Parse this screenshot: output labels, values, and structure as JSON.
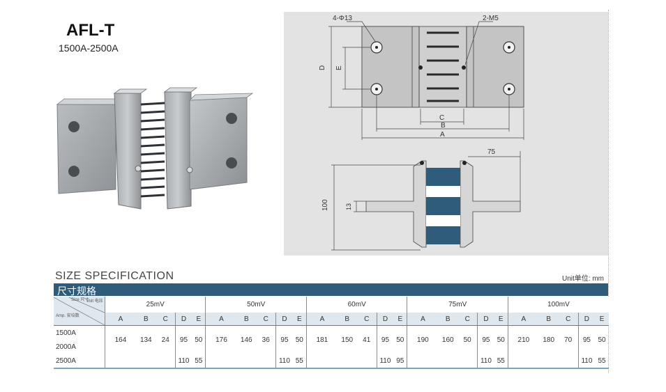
{
  "product": {
    "title": "AFL-T",
    "subtitle": "1500A-2500A"
  },
  "drawing": {
    "labels": {
      "holes": "4-Φ13",
      "screws": "2-M5",
      "d": "D",
      "e": "E",
      "c": "C",
      "b": "B",
      "a": "A",
      "dim_75": "75",
      "dim_100": "100",
      "dim_13": "13"
    }
  },
  "spec": {
    "heading": "SIZE SPECIFICATION",
    "heading_cn": "尺寸规格",
    "unit": "Unit单位: mm",
    "corner": {
      "size": "Size 尺寸",
      "volt": "Volt 电压",
      "amp": "Amp. 安培数"
    },
    "volt_groups": [
      "25mV",
      "50mV",
      "60mV",
      "75mV",
      "100mV"
    ],
    "columns": [
      "A",
      "B",
      "C",
      "D",
      "E"
    ],
    "amps": [
      "1500A",
      "2000A",
      "2500A"
    ],
    "groups": [
      {
        "A": "164",
        "B": "134",
        "C": "24",
        "DE_1500_2000": [
          "95",
          "50"
        ],
        "DE_2500": [
          "110",
          "55"
        ]
      },
      {
        "A": "176",
        "B": "146",
        "C": "36",
        "DE_1500_2000": [
          "95",
          "50"
        ],
        "DE_2500": [
          "110",
          "55"
        ]
      },
      {
        "A": "181",
        "B": "150",
        "C": "41",
        "DE_1500_2000": [
          "95",
          "50"
        ],
        "DE_2500": [
          "110",
          "95"
        ]
      },
      {
        "A": "190",
        "B": "160",
        "C": "50",
        "DE_1500_2000": [
          "95",
          "50"
        ],
        "DE_2500": [
          "110",
          "55"
        ]
      },
      {
        "A": "210",
        "B": "180",
        "C": "70",
        "DE_1500_2000": [
          "95",
          "50"
        ],
        "DE_2500": [
          "110",
          "55"
        ]
      }
    ]
  }
}
